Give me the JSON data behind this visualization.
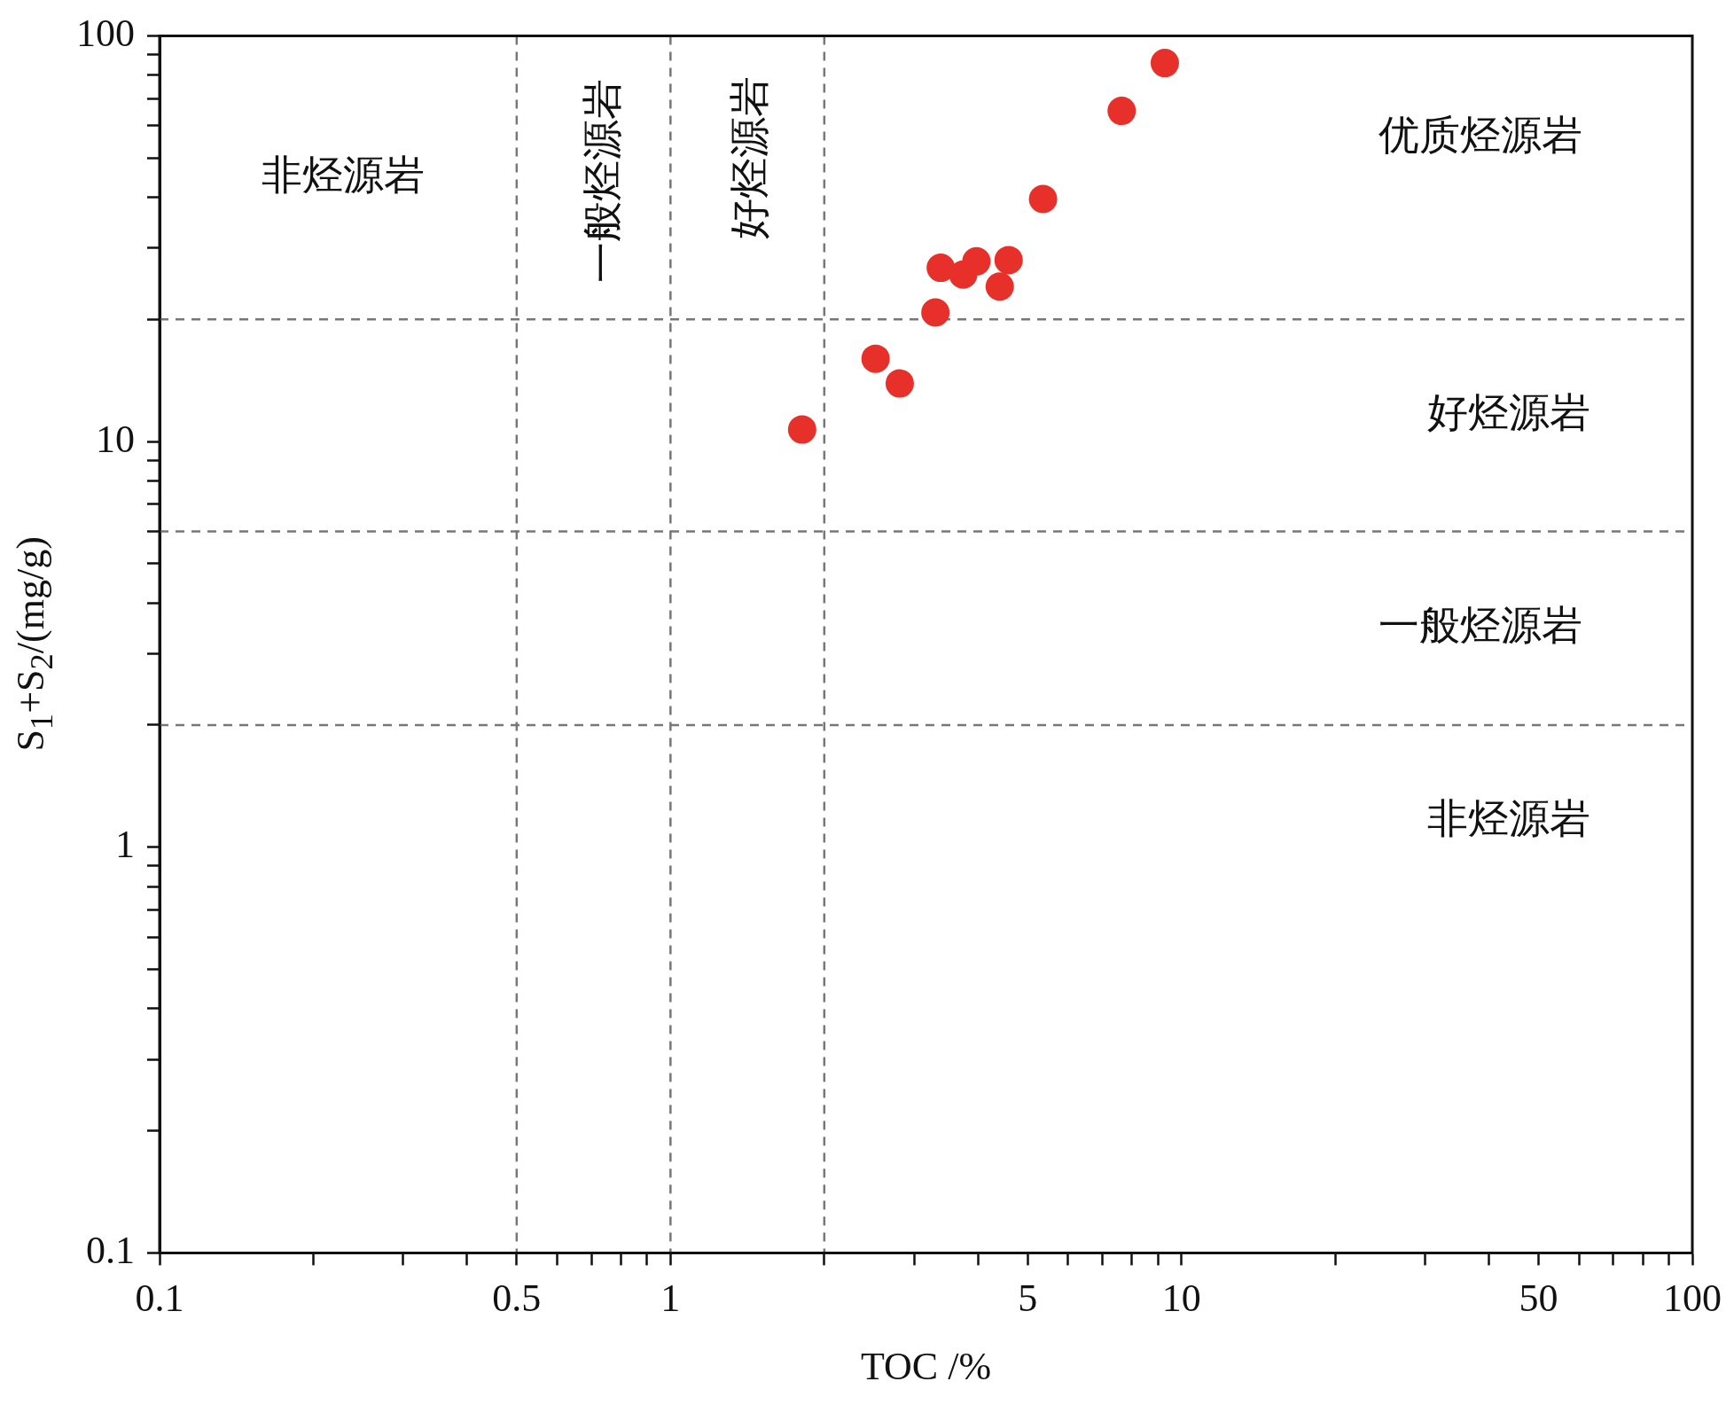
{
  "chart_data": {
    "type": "scatter",
    "xlabel": "TOC /%",
    "ylabel": "S$_{1}$+S$_{2}$/(mg/g)",
    "log": "xy",
    "grid": false,
    "legend": false,
    "marker": "circle",
    "xlim": [
      0.1,
      100
    ],
    "ylim": [
      0.1,
      100
    ],
    "xticks": [
      0.1,
      {
        "value": 0.2,
        "label": null
      },
      {
        "value": 0.3,
        "label": null
      },
      {
        "value": 0.4,
        "label": null
      },
      0.5,
      {
        "value": 0.6,
        "label": null
      },
      {
        "value": 0.7,
        "label": null
      },
      {
        "value": 0.8,
        "label": null
      },
      {
        "value": 0.9,
        "label": null
      },
      1,
      {
        "value": 2,
        "label": null
      },
      {
        "value": 3,
        "label": null
      },
      {
        "value": 4,
        "label": null
      },
      5,
      {
        "value": 6,
        "label": null
      },
      {
        "value": 7,
        "label": null
      },
      {
        "value": 8,
        "label": null
      },
      {
        "value": 9,
        "label": null
      },
      10,
      {
        "value": 20,
        "label": null
      },
      {
        "value": 30,
        "label": null
      },
      {
        "value": 40,
        "label": null
      },
      50,
      {
        "value": 60,
        "label": null
      },
      {
        "value": 70,
        "label": null
      },
      {
        "value": 80,
        "label": null
      },
      {
        "value": 90,
        "label": null
      },
      100
    ],
    "yticks": [
      0.1,
      {
        "value": 0.2,
        "label": null
      },
      {
        "value": 0.3,
        "label": null
      },
      {
        "value": 0.4,
        "label": null
      },
      {
        "value": 0.5,
        "label": null
      },
      {
        "value": 0.6,
        "label": null
      },
      {
        "value": 0.7,
        "label": null
      },
      {
        "value": 0.8,
        "label": null
      },
      {
        "value": 0.9,
        "label": null
      },
      1,
      {
        "value": 2,
        "label": null
      },
      {
        "value": 3,
        "label": null
      },
      {
        "value": 4,
        "label": null
      },
      {
        "value": 5,
        "label": null
      },
      {
        "value": 6,
        "label": null
      },
      {
        "value": 7,
        "label": null
      },
      {
        "value": 8,
        "label": null
      },
      {
        "value": 9,
        "label": null
      },
      10,
      {
        "value": 20,
        "label": null
      },
      {
        "value": 30,
        "label": null
      },
      {
        "value": 40,
        "label": null
      },
      {
        "value": 50,
        "label": null
      },
      {
        "value": 60,
        "label": null
      },
      {
        "value": 70,
        "label": null
      },
      {
        "value": 80,
        "label": null
      },
      {
        "value": 90,
        "label": null
      },
      100
    ],
    "series": [
      {
        "color": "#e8302a",
        "x": [
          1.81,
          2.52,
          2.81,
          3.3,
          3.38,
          3.74,
          3.97,
          4.41,
          4.59,
          5.36,
          7.64,
          9.28
        ],
        "values": [
          10.7,
          16.0,
          13.9,
          20.8,
          26.8,
          25.8,
          27.8,
          24.1,
          28.0,
          39.6,
          65.3,
          85.7
        ]
      }
    ],
    "ref_lines": [
      {
        "axis": "x",
        "value": 0.5,
        "color": "#777777",
        "line_style": "dashed"
      },
      {
        "axis": "x",
        "value": 1,
        "color": "#777777",
        "line_style": "dashed"
      },
      {
        "axis": "x",
        "value": 2,
        "color": "#777777",
        "line_style": "dashed"
      },
      {
        "axis": "y",
        "value": 2,
        "color": "#777777",
        "line_style": "dashed"
      },
      {
        "axis": "y",
        "value": 6,
        "color": "#777777",
        "line_style": "dashed"
      },
      {
        "axis": "y",
        "value": 20,
        "color": "#777777",
        "line_style": "dashed"
      }
    ],
    "annotations": [
      "非烃源岩",
      "一般烃源岩",
      "好烃源岩",
      "优质烃源岩",
      "好烃源岩",
      "一般烃源岩",
      "非烃源岩"
    ]
  }
}
